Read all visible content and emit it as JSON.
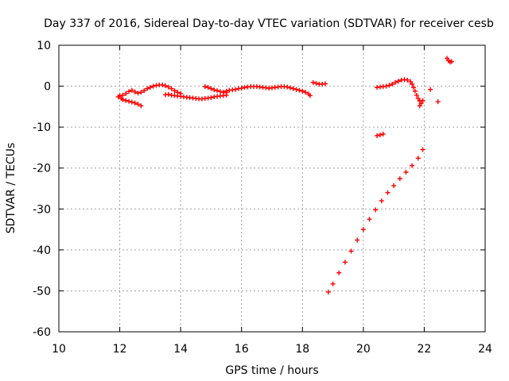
{
  "chart_data": {
    "type": "scatter",
    "title": "Day 337 of 2016, Sidereal Day-to-day VTEC variation (SDTVAR) for receiver cesb",
    "xlabel": "GPS time / hours",
    "ylabel": "SDTVAR / TECUs",
    "xlim": [
      10,
      24
    ],
    "ylim": [
      -60,
      10
    ],
    "xticks": [
      "10",
      "12",
      "14",
      "16",
      "18",
      "20",
      "22",
      "24"
    ],
    "yticks": [
      "10",
      "0",
      "-10",
      "-20",
      "-30",
      "-40",
      "-50",
      "-60"
    ],
    "grid": true,
    "marker": "plus",
    "color": "#ff0000",
    "series": [
      {
        "values": [
          [
            11.95,
            -2.6
          ],
          [
            12.0,
            -2.3
          ],
          [
            12.05,
            -3.0
          ],
          [
            12.1,
            -3.3
          ],
          [
            12.2,
            -3.5
          ],
          [
            12.3,
            -3.7
          ],
          [
            12.4,
            -3.9
          ],
          [
            12.5,
            -4.1
          ],
          [
            12.6,
            -4.4
          ],
          [
            12.7,
            -4.8
          ],
          [
            12.1,
            -2.2
          ],
          [
            12.2,
            -1.8
          ],
          [
            12.3,
            -1.3
          ],
          [
            12.4,
            -1.0
          ],
          [
            12.5,
            -1.4
          ],
          [
            12.6,
            -1.7
          ],
          [
            12.7,
            -1.5
          ],
          [
            12.8,
            -1.1
          ],
          [
            12.9,
            -0.6
          ],
          [
            13.0,
            -0.3
          ],
          [
            13.1,
            0.0
          ],
          [
            13.2,
            0.2
          ],
          [
            13.3,
            0.3
          ],
          [
            13.4,
            0.3
          ],
          [
            13.5,
            0.1
          ],
          [
            13.6,
            -0.2
          ],
          [
            13.7,
            -0.6
          ],
          [
            13.8,
            -1.1
          ],
          [
            13.9,
            -1.5
          ],
          [
            14.0,
            -1.8
          ],
          [
            13.5,
            -2.1
          ],
          [
            13.6,
            -2.0
          ],
          [
            13.7,
            -2.2
          ],
          [
            13.8,
            -2.3
          ],
          [
            13.9,
            -2.4
          ],
          [
            14.0,
            -2.5
          ],
          [
            14.1,
            -2.6
          ],
          [
            14.2,
            -2.7
          ],
          [
            14.3,
            -2.8
          ],
          [
            14.4,
            -2.9
          ],
          [
            14.5,
            -3.0
          ],
          [
            14.6,
            -3.1
          ],
          [
            14.7,
            -3.1
          ],
          [
            14.8,
            -3.0
          ],
          [
            14.9,
            -2.9
          ],
          [
            15.0,
            -2.8
          ],
          [
            15.1,
            -2.6
          ],
          [
            15.2,
            -2.5
          ],
          [
            15.3,
            -2.4
          ],
          [
            15.4,
            -2.3
          ],
          [
            15.5,
            -2.2
          ],
          [
            14.8,
            -0.1
          ],
          [
            14.9,
            -0.3
          ],
          [
            15.0,
            -0.6
          ],
          [
            15.1,
            -0.9
          ],
          [
            15.2,
            -1.1
          ],
          [
            15.3,
            -1.3
          ],
          [
            15.4,
            -1.5
          ],
          [
            15.5,
            -1.6
          ],
          [
            15.5,
            -1.2
          ],
          [
            15.6,
            -1.0
          ],
          [
            15.7,
            -0.9
          ],
          [
            15.8,
            -0.8
          ],
          [
            15.9,
            -0.6
          ],
          [
            16.0,
            -0.5
          ],
          [
            16.1,
            -0.3
          ],
          [
            16.2,
            -0.2
          ],
          [
            16.3,
            -0.1
          ],
          [
            16.4,
            -0.1
          ],
          [
            16.5,
            -0.1
          ],
          [
            16.6,
            -0.2
          ],
          [
            16.7,
            -0.3
          ],
          [
            16.8,
            -0.4
          ],
          [
            16.9,
            -0.5
          ],
          [
            17.0,
            -0.4
          ],
          [
            17.1,
            -0.3
          ],
          [
            17.2,
            -0.2
          ],
          [
            17.3,
            -0.1
          ],
          [
            17.4,
            -0.1
          ],
          [
            17.5,
            -0.2
          ],
          [
            17.6,
            -0.4
          ],
          [
            17.7,
            -0.6
          ],
          [
            17.8,
            -0.8
          ],
          [
            17.9,
            -1.0
          ],
          [
            18.0,
            -1.2
          ],
          [
            18.1,
            -1.5
          ],
          [
            18.2,
            -1.9
          ],
          [
            18.25,
            -2.3
          ],
          [
            18.35,
            0.9
          ],
          [
            18.45,
            0.7
          ],
          [
            18.55,
            0.5
          ],
          [
            18.65,
            0.5
          ],
          [
            18.75,
            0.6
          ],
          [
            20.45,
            -0.3
          ],
          [
            20.55,
            -0.2
          ],
          [
            20.65,
            -0.1
          ],
          [
            20.75,
            0.0
          ],
          [
            20.85,
            0.2
          ],
          [
            20.95,
            0.5
          ],
          [
            21.05,
            0.9
          ],
          [
            21.15,
            1.2
          ],
          [
            21.25,
            1.5
          ],
          [
            21.35,
            1.6
          ],
          [
            21.45,
            1.5
          ],
          [
            21.55,
            1.1
          ],
          [
            21.6,
            0.5
          ],
          [
            21.65,
            -0.3
          ],
          [
            21.7,
            -1.2
          ],
          [
            21.75,
            -2.2
          ],
          [
            21.8,
            -3.0
          ],
          [
            21.85,
            -3.6
          ],
          [
            21.9,
            -4.2
          ],
          [
            21.85,
            -4.8
          ],
          [
            20.45,
            -12.1
          ],
          [
            20.55,
            -11.9
          ],
          [
            20.65,
            -11.7
          ],
          [
            18.85,
            -50.3
          ],
          [
            19.0,
            -48.3
          ],
          [
            19.2,
            -45.6
          ],
          [
            19.4,
            -43.0
          ],
          [
            19.6,
            -40.3
          ],
          [
            19.8,
            -37.6
          ],
          [
            20.0,
            -35.0
          ],
          [
            20.2,
            -32.5
          ],
          [
            20.4,
            -30.2
          ],
          [
            20.6,
            -28.0
          ],
          [
            20.8,
            -26.0
          ],
          [
            21.0,
            -24.3
          ],
          [
            21.2,
            -22.6
          ],
          [
            21.4,
            -21.0
          ],
          [
            21.6,
            -19.4
          ],
          [
            21.8,
            -17.6
          ],
          [
            21.95,
            -15.5
          ],
          [
            21.95,
            -3.5
          ],
          [
            22.2,
            -0.8
          ],
          [
            22.45,
            -3.8
          ],
          [
            22.75,
            6.8
          ],
          [
            22.8,
            6.2
          ],
          [
            22.85,
            5.9
          ],
          [
            22.9,
            6.0
          ]
        ]
      }
    ]
  }
}
